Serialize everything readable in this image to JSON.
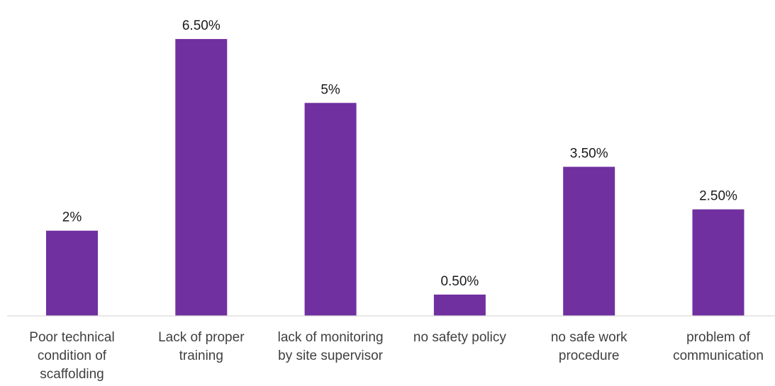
{
  "chart_data": {
    "type": "bar",
    "categories": [
      [
        "Poor technical",
        "condition of",
        "scaffolding"
      ],
      [
        "Lack of proper",
        "training"
      ],
      [
        "lack of monitoring",
        "by site supervisor"
      ],
      [
        "no safety policy"
      ],
      [
        "no safe work",
        "procedure"
      ],
      [
        "problem of",
        "communication"
      ]
    ],
    "values": [
      2,
      6.5,
      5,
      0.5,
      3.5,
      2.5
    ],
    "data_labels": [
      "2%",
      "6.50%",
      "5%",
      "0.50%",
      "3.50%",
      "2.50%"
    ],
    "unit": "%",
    "ylim": [
      0,
      7
    ],
    "title": "",
    "xlabel": "",
    "ylabel": "",
    "grid": false,
    "legend": "none",
    "bar_color": "#7030A0",
    "axis_color": "#d9d9d9"
  }
}
